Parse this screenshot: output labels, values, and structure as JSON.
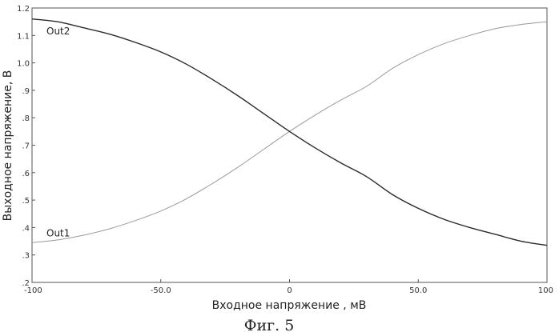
{
  "caption": "Фиг. 5",
  "chart_data": {
    "type": "line",
    "title": "",
    "xlabel": "Входное напряжение , мВ",
    "ylabel": "Выходное напряжение, В",
    "xlim": [
      -100,
      100
    ],
    "ylim": [
      0.2,
      1.2
    ],
    "grid": false,
    "x_ticks": [
      {
        "value": -100,
        "label": "-100"
      },
      {
        "value": -50,
        "label": "-50.0"
      },
      {
        "value": 0,
        "label": "0"
      },
      {
        "value": 50,
        "label": "50.0"
      },
      {
        "value": 100,
        "label": "100"
      }
    ],
    "y_ticks": [
      {
        "value": 0.2,
        "label": ".2"
      },
      {
        "value": 0.3,
        "label": ".3"
      },
      {
        "value": 0.4,
        "label": ".4"
      },
      {
        "value": 0.5,
        "label": ".5"
      },
      {
        "value": 0.6,
        "label": ".6"
      },
      {
        "value": 0.7,
        "label": ".7"
      },
      {
        "value": 0.8,
        "label": ".8"
      },
      {
        "value": 0.9,
        "label": ".9"
      },
      {
        "value": 1.0,
        "label": "1.0"
      },
      {
        "value": 1.1,
        "label": "1.1"
      },
      {
        "value": 1.2,
        "label": "1.2"
      }
    ],
    "x": [
      -100,
      -90,
      -80,
      -70,
      -60,
      -50,
      -40,
      -30,
      -20,
      -10,
      0,
      10,
      20,
      30,
      40,
      50,
      60,
      70,
      80,
      90,
      100
    ],
    "series": [
      {
        "name": "Out1",
        "color": "#9a9a9a",
        "label_at": [
          -100,
          0.38
        ],
        "values": [
          0.345,
          0.355,
          0.372,
          0.395,
          0.425,
          0.46,
          0.505,
          0.56,
          0.62,
          0.685,
          0.75,
          0.81,
          0.865,
          0.915,
          0.98,
          1.03,
          1.07,
          1.1,
          1.125,
          1.14,
          1.15
        ]
      },
      {
        "name": "Out2",
        "color": "#2a2a2a",
        "label_at": [
          -100,
          1.115
        ],
        "values": [
          1.16,
          1.15,
          1.128,
          1.105,
          1.075,
          1.04,
          0.995,
          0.94,
          0.88,
          0.815,
          0.75,
          0.69,
          0.635,
          0.585,
          0.52,
          0.47,
          0.43,
          0.4,
          0.375,
          0.35,
          0.335
        ]
      }
    ]
  }
}
